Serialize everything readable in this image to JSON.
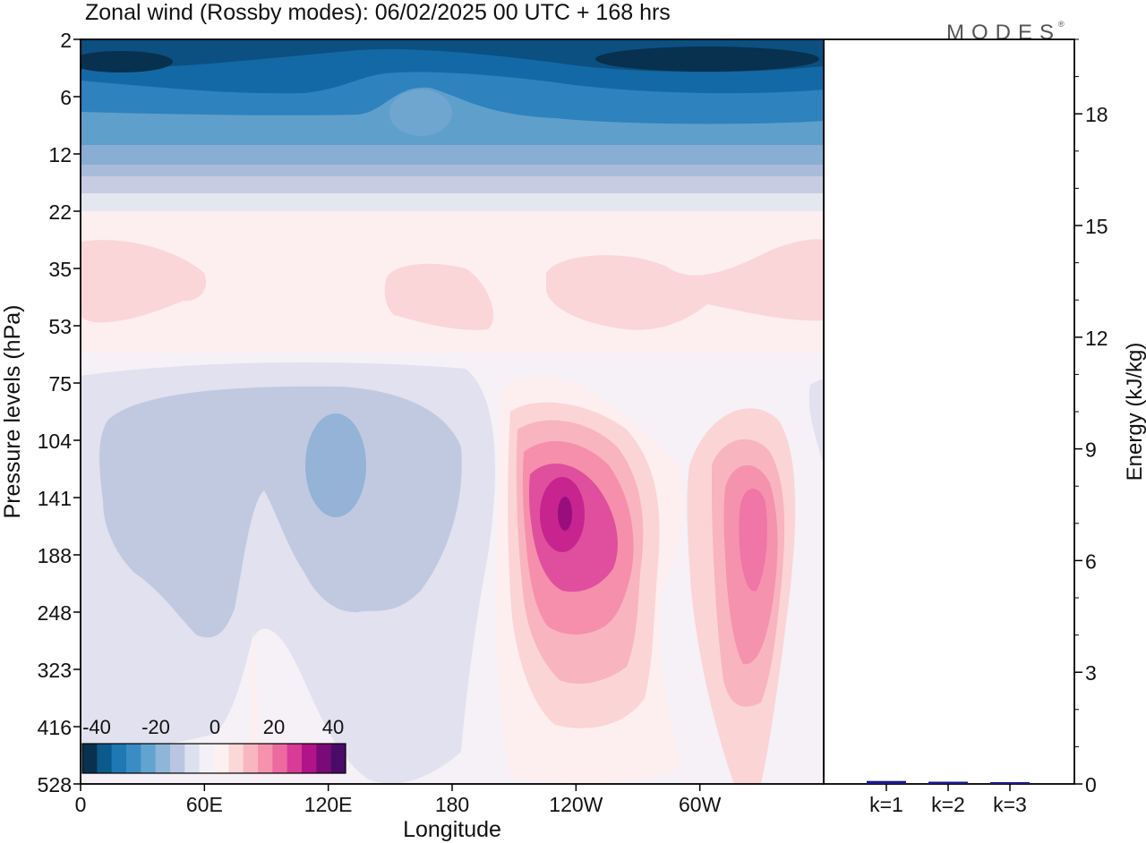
{
  "chart_data": [
    {
      "type": "heatmap",
      "title": "Zonal wind (Rossby modes):  06/02/2025  00 UTC  + 168 hrs",
      "xlabel": "Longitude",
      "ylabel": "Pressure levels (hPa)",
      "x_ticks": [
        "0",
        "60E",
        "120E",
        "180",
        "120W",
        "60W"
      ],
      "y_ticks": [
        "2",
        "6",
        "12",
        "22",
        "35",
        "53",
        "75",
        "104",
        "141",
        "188",
        "248",
        "323",
        "416",
        "528"
      ],
      "colorbar": {
        "ticks": [
          "-40",
          "-20",
          "0",
          "20",
          "40"
        ],
        "colors": [
          "#08304f",
          "#0a5a8c",
          "#1f78b4",
          "#3a8cc4",
          "#62a4d0",
          "#8fb6d8",
          "#bac5e2",
          "#dde0ee",
          "#f4f0f7",
          "#fdf0f0",
          "#fbd8d8",
          "#f8b6c0",
          "#f592ae",
          "#ec6aa0",
          "#d83c96",
          "#b01488",
          "#7a0a78",
          "#4a0a68"
        ]
      }
    },
    {
      "type": "bar",
      "ylabel": "Energy (kJ/kg)",
      "ylim": [
        0,
        20
      ],
      "y_ticks": [
        "0",
        "3",
        "6",
        "9",
        "12",
        "15",
        "18"
      ],
      "categories": [
        "k=1",
        "k=2",
        "k=3"
      ],
      "values": [
        0.08,
        0.06,
        0.03
      ],
      "color": "#1a1a8c"
    }
  ],
  "logo": "MODES"
}
